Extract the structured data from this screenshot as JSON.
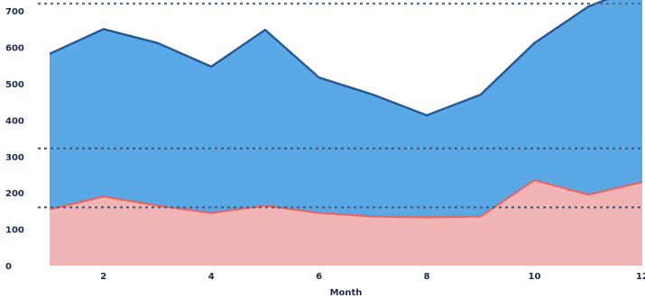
{
  "chart_data": {
    "type": "area",
    "title": "",
    "xlabel": "Month",
    "ylabel": "",
    "x": [
      1,
      2,
      3,
      4,
      5,
      6,
      7,
      8,
      9,
      10,
      11,
      12
    ],
    "xlim": [
      1,
      12
    ],
    "ylim": [
      0,
      730
    ],
    "x_ticks": [
      {
        "value": 2,
        "label": "2"
      },
      {
        "value": 4,
        "label": "4"
      },
      {
        "value": 6,
        "label": "6"
      },
      {
        "value": 8,
        "label": "8"
      },
      {
        "value": 10,
        "label": "10"
      },
      {
        "value": 12,
        "label": "12"
      }
    ],
    "y_ticks": [
      {
        "value": 0,
        "label": "0"
      },
      {
        "value": 100,
        "label": "100"
      },
      {
        "value": 200,
        "label": "200"
      },
      {
        "value": 300,
        "label": "300"
      },
      {
        "value": 400,
        "label": "400"
      },
      {
        "value": 500,
        "label": "500"
      },
      {
        "value": 600,
        "label": "600"
      },
      {
        "value": 700,
        "label": "700"
      }
    ],
    "grid": false,
    "series": [
      {
        "values": [
          582,
          650,
          612,
          547,
          648,
          517,
          470,
          413,
          470,
          612,
          712,
          770
        ],
        "fill": "#5aa8e6",
        "line": "#1e5a9a"
      },
      {
        "values": [
          155,
          190,
          165,
          145,
          165,
          145,
          135,
          133,
          135,
          235,
          195,
          230
        ],
        "fill": "#f1b5b5",
        "line": "#de6a6a"
      }
    ],
    "reference_lines": [
      {
        "value": 720,
        "color": "#5a6b8c",
        "style": "dotted"
      },
      {
        "value": 322,
        "color": "#4a5a7a",
        "style": "dotted"
      },
      {
        "value": 160,
        "color": "#4a5a7a",
        "style": "dotted"
      }
    ]
  }
}
